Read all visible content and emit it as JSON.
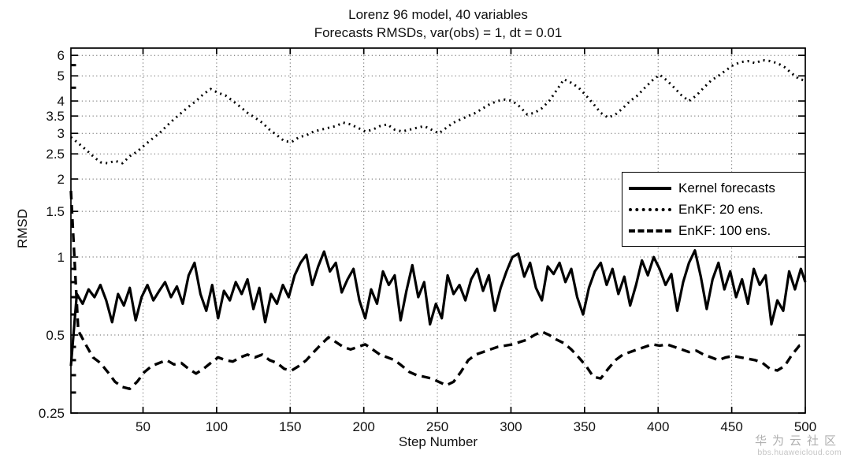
{
  "watermark": {
    "brand": "华为云社区",
    "url": "bbs.huaweicloud.com"
  },
  "chart_data": {
    "type": "line",
    "title": "Lorenz 96 model, 40 variables",
    "subtitle": "Forecasts RMSDs, var(obs) = 1, dt = 0.01",
    "xlabel": "Step Number",
    "ylabel": "RMSD",
    "grid": "dotted",
    "legend_position": "upper right",
    "x_axis": {
      "min": 1,
      "max": 500,
      "ticks": [
        50,
        100,
        150,
        200,
        250,
        300,
        350,
        400,
        450,
        500
      ]
    },
    "y_axis": {
      "scale": "log",
      "min": 0.25,
      "max": 6.4,
      "ticks": [
        0.25,
        0.5,
        1,
        1.5,
        2,
        2.5,
        3,
        3.5,
        4,
        5,
        6
      ],
      "tick_labels": [
        "0.25",
        "0.5",
        "1",
        "1.5",
        "2",
        "2.5",
        "3",
        "3.5",
        "4",
        "5",
        "6"
      ],
      "minor_ticks": [
        0.3,
        0.35,
        0.4,
        0.45,
        0.6,
        0.7,
        0.8,
        0.9,
        4.5,
        5.5
      ]
    },
    "colors": {
      "line": "#000000",
      "grid": "#666666",
      "watermark": "#b0b0b0",
      "background": "#ffffff"
    },
    "series": [
      {
        "name": "Kernel forecasts",
        "style": "solid",
        "x_start": 1,
        "x_step": 4,
        "values": [
          0.38,
          0.72,
          0.66,
          0.75,
          0.7,
          0.78,
          0.68,
          0.56,
          0.72,
          0.65,
          0.76,
          0.57,
          0.7,
          0.78,
          0.68,
          0.74,
          0.8,
          0.7,
          0.77,
          0.66,
          0.85,
          0.95,
          0.72,
          0.62,
          0.78,
          0.58,
          0.74,
          0.68,
          0.8,
          0.72,
          0.82,
          0.63,
          0.76,
          0.56,
          0.72,
          0.66,
          0.78,
          0.7,
          0.85,
          0.95,
          1.02,
          0.78,
          0.92,
          1.05,
          0.88,
          0.95,
          0.73,
          0.82,
          0.9,
          0.68,
          0.58,
          0.75,
          0.66,
          0.88,
          0.78,
          0.85,
          0.57,
          0.74,
          0.93,
          0.7,
          0.8,
          0.55,
          0.66,
          0.58,
          0.85,
          0.72,
          0.78,
          0.68,
          0.82,
          0.9,
          0.74,
          0.85,
          0.62,
          0.76,
          0.88,
          1.0,
          1.03,
          0.84,
          0.95,
          0.76,
          0.68,
          0.92,
          0.86,
          0.95,
          0.8,
          0.9,
          0.7,
          0.6,
          0.76,
          0.88,
          0.95,
          0.78,
          0.9,
          0.72,
          0.84,
          0.65,
          0.78,
          0.97,
          0.85,
          1.0,
          0.9,
          0.78,
          0.86,
          0.62,
          0.8,
          0.95,
          1.06,
          0.84,
          0.63,
          0.82,
          0.95,
          0.75,
          0.88,
          0.7,
          0.82,
          0.66,
          0.9,
          0.78,
          0.85,
          0.55,
          0.68,
          0.62,
          0.88,
          0.75,
          0.9,
          0.8
        ]
      },
      {
        "name": "EnKF: 20 ens.",
        "style": "dotted",
        "x_start": 1,
        "x_step": 5,
        "values": [
          2.9,
          2.75,
          2.6,
          2.45,
          2.32,
          2.3,
          2.35,
          2.3,
          2.45,
          2.55,
          2.7,
          2.85,
          3.0,
          3.2,
          3.4,
          3.6,
          3.8,
          4.0,
          4.25,
          4.45,
          4.3,
          4.2,
          4.0,
          3.8,
          3.6,
          3.45,
          3.3,
          3.1,
          2.95,
          2.8,
          2.78,
          2.9,
          2.95,
          3.05,
          3.1,
          3.15,
          3.2,
          3.3,
          3.25,
          3.15,
          3.05,
          3.1,
          3.2,
          3.25,
          3.1,
          3.05,
          3.1,
          3.15,
          3.2,
          3.1,
          3.0,
          3.15,
          3.3,
          3.4,
          3.5,
          3.6,
          3.75,
          3.9,
          4.0,
          4.05,
          4.0,
          3.8,
          3.55,
          3.6,
          3.75,
          4.0,
          4.4,
          4.85,
          4.7,
          4.5,
          4.2,
          3.9,
          3.6,
          3.45,
          3.55,
          3.75,
          4.0,
          4.2,
          4.5,
          4.8,
          5.05,
          4.8,
          4.5,
          4.2,
          4.0,
          4.2,
          4.5,
          4.8,
          5.0,
          5.25,
          5.5,
          5.65,
          5.7,
          5.6,
          5.75,
          5.7,
          5.6,
          5.4,
          5.1,
          4.85,
          4.8
        ]
      },
      {
        "name": "EnKF: 100 ens.",
        "style": "dashed",
        "x_start": 1,
        "x_step": 5,
        "values": [
          1.8,
          0.52,
          0.46,
          0.41,
          0.39,
          0.36,
          0.33,
          0.315,
          0.31,
          0.33,
          0.36,
          0.38,
          0.39,
          0.4,
          0.385,
          0.39,
          0.37,
          0.355,
          0.37,
          0.39,
          0.41,
          0.4,
          0.395,
          0.41,
          0.42,
          0.41,
          0.42,
          0.4,
          0.39,
          0.37,
          0.365,
          0.38,
          0.4,
          0.43,
          0.46,
          0.49,
          0.47,
          0.45,
          0.44,
          0.45,
          0.46,
          0.44,
          0.42,
          0.41,
          0.4,
          0.38,
          0.36,
          0.35,
          0.345,
          0.34,
          0.33,
          0.32,
          0.33,
          0.36,
          0.4,
          0.42,
          0.43,
          0.44,
          0.45,
          0.455,
          0.46,
          0.47,
          0.48,
          0.5,
          0.515,
          0.5,
          0.48,
          0.465,
          0.44,
          0.41,
          0.38,
          0.345,
          0.34,
          0.37,
          0.4,
          0.42,
          0.43,
          0.44,
          0.45,
          0.46,
          0.455,
          0.46,
          0.45,
          0.44,
          0.43,
          0.435,
          0.42,
          0.41,
          0.4,
          0.41,
          0.415,
          0.41,
          0.405,
          0.4,
          0.39,
          0.37,
          0.365,
          0.38,
          0.42,
          0.455,
          0.46
        ]
      }
    ]
  }
}
